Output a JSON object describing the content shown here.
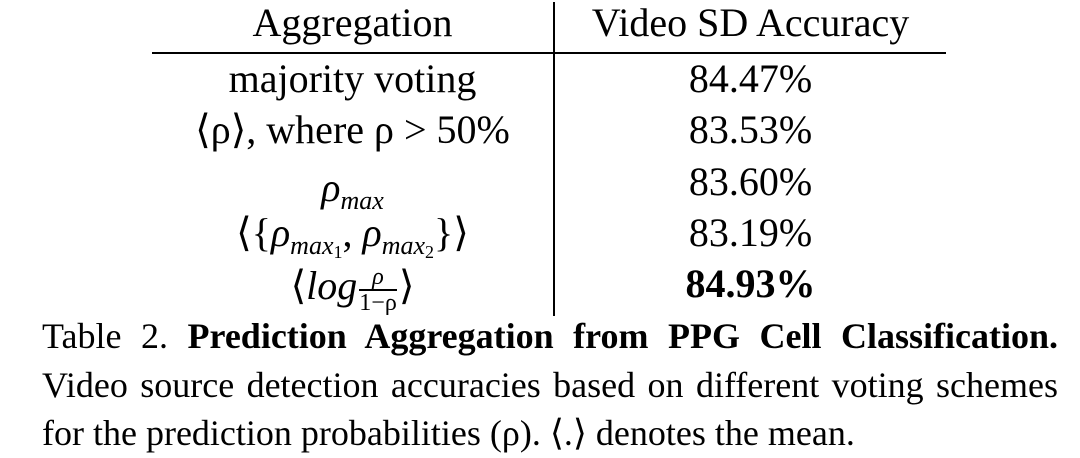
{
  "table": {
    "headers": [
      "Aggregation",
      "Video SD Accuracy"
    ],
    "rows": [
      {
        "aggregation": "majority voting",
        "accuracy": "84.47%"
      },
      {
        "aggregation": "⟨ρ⟩, where ρ > 50%",
        "aggregation_parts": {
          "a": "⟨",
          "rho": "ρ",
          "b": "⟩, where ",
          "c": " > 50%"
        },
        "accuracy": "83.53%"
      },
      {
        "aggregation": "ρ_max",
        "aggregation_parts": {
          "rho": "ρ",
          "sub": "max"
        },
        "accuracy": "83.60%"
      },
      {
        "aggregation": "⟨{ρ_max1, ρ_max2}⟩",
        "aggregation_parts": {
          "open": "⟨{",
          "rho": "ρ",
          "sub1": "max",
          "i1": "1",
          "sep": ", ",
          "sub2": "max",
          "i2": "2",
          "close": "}⟩"
        },
        "accuracy": "83.19%"
      },
      {
        "aggregation": "⟨log ρ/(1−ρ)⟩",
        "aggregation_parts": {
          "open": "⟨",
          "log": "log",
          "num": "ρ",
          "den": "1−ρ",
          "close": "⟩"
        },
        "accuracy": "84.93%",
        "bold": true
      }
    ]
  },
  "caption": {
    "label": "Table 2.",
    "title": "Prediction Aggregation from PPG Cell Classification.",
    "text": "Video source detection accuracies based on different voting schemes for the prediction probabilities (ρ). ⟨.⟩ denotes the mean."
  }
}
